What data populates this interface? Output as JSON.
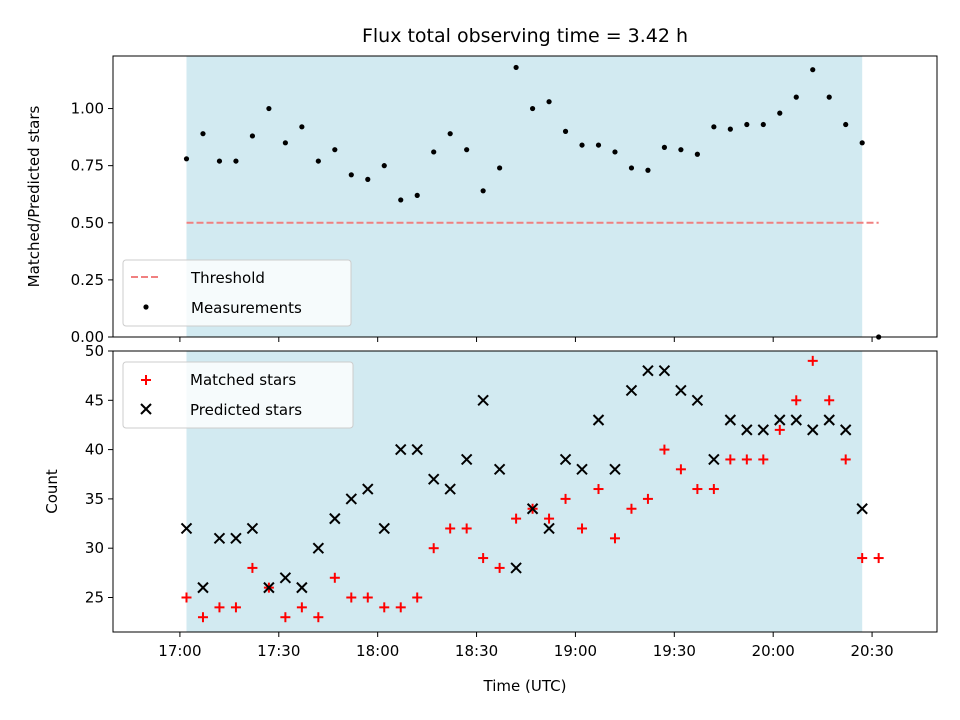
{
  "chart_data": [
    {
      "type": "scatter",
      "title": "Flux total observing time = 3.42 h",
      "xlabel": "",
      "ylabel": "Matched/Predicted stars",
      "ylim": [
        0,
        1.23
      ],
      "yticks": [
        "0.00",
        "0.25",
        "0.50",
        "0.75",
        "1.00"
      ],
      "legend_position": "lower-left",
      "shaded_span": [
        "17:02",
        "20:27"
      ],
      "shaded_color": "#add8e6",
      "threshold": {
        "name": "Threshold",
        "value": 0.5,
        "x_range": [
          "17:02",
          "20:32"
        ],
        "color": "#f08080",
        "style": "dashed"
      },
      "series": [
        {
          "name": "Measurements",
          "marker": "dot",
          "color": "#000000",
          "x": [
            "17:02",
            "17:07",
            "17:12",
            "17:17",
            "17:22",
            "17:27",
            "17:32",
            "17:37",
            "17:42",
            "17:47",
            "17:52",
            "17:57",
            "18:02",
            "18:07",
            "18:12",
            "18:17",
            "18:22",
            "18:27",
            "18:32",
            "18:37",
            "18:42",
            "18:47",
            "18:52",
            "18:57",
            "19:02",
            "19:07",
            "19:12",
            "19:17",
            "19:22",
            "19:27",
            "19:32",
            "19:37",
            "19:42",
            "19:47",
            "19:52",
            "19:57",
            "20:02",
            "20:07",
            "20:12",
            "20:17",
            "20:22",
            "20:27",
            "20:32"
          ],
          "y": [
            0.78,
            0.89,
            0.77,
            0.77,
            0.88,
            1.0,
            0.85,
            0.92,
            0.77,
            0.82,
            0.71,
            0.69,
            0.75,
            0.6,
            0.62,
            0.81,
            0.89,
            0.82,
            0.64,
            0.74,
            1.18,
            1.0,
            1.03,
            0.9,
            0.84,
            0.84,
            0.81,
            0.74,
            0.73,
            0.83,
            0.82,
            0.8,
            0.92,
            0.91,
            0.93,
            0.93,
            0.98,
            1.05,
            1.17,
            1.05,
            0.93,
            0.85,
            0.0
          ]
        }
      ]
    },
    {
      "type": "scatter",
      "title": "",
      "xlabel": "Time (UTC)",
      "ylabel": "Count",
      "ylim": [
        21.5,
        50
      ],
      "yticks": [
        "25",
        "30",
        "35",
        "40",
        "45",
        "50"
      ],
      "xticks": [
        "17:00",
        "17:30",
        "18:00",
        "18:30",
        "19:00",
        "19:30",
        "20:00",
        "20:30"
      ],
      "legend_position": "top-left",
      "shaded_span": [
        "17:02",
        "20:27"
      ],
      "shaded_color": "#add8e6",
      "series": [
        {
          "name": "Matched stars",
          "marker": "plus",
          "color": "#ff0000",
          "x": [
            "17:02",
            "17:07",
            "17:12",
            "17:17",
            "17:22",
            "17:27",
            "17:32",
            "17:37",
            "17:42",
            "17:47",
            "17:52",
            "17:57",
            "18:02",
            "18:07",
            "18:12",
            "18:17",
            "18:22",
            "18:27",
            "18:32",
            "18:37",
            "18:42",
            "18:47",
            "18:52",
            "18:57",
            "19:02",
            "19:07",
            "19:12",
            "19:17",
            "19:22",
            "19:27",
            "19:32",
            "19:37",
            "19:42",
            "19:47",
            "19:52",
            "19:57",
            "20:02",
            "20:07",
            "20:12",
            "20:17",
            "20:22",
            "20:27",
            "20:32"
          ],
          "y": [
            25,
            23,
            24,
            24,
            28,
            26,
            23,
            24,
            23,
            27,
            25,
            25,
            24,
            24,
            25,
            30,
            32,
            32,
            29,
            28,
            33,
            34,
            33,
            35,
            32,
            36,
            31,
            34,
            35,
            40,
            38,
            36,
            36,
            39,
            39,
            39,
            42,
            45,
            49,
            45,
            39,
            29,
            29
          ]
        },
        {
          "name": "Predicted stars",
          "marker": "x",
          "color": "#000000",
          "x": [
            "17:02",
            "17:07",
            "17:12",
            "17:17",
            "17:22",
            "17:27",
            "17:32",
            "17:37",
            "17:42",
            "17:47",
            "17:52",
            "17:57",
            "18:02",
            "18:07",
            "18:12",
            "18:17",
            "18:22",
            "18:27",
            "18:32",
            "18:37",
            "18:42",
            "18:47",
            "18:52",
            "18:57",
            "19:02",
            "19:07",
            "19:12",
            "19:17",
            "19:22",
            "19:27",
            "19:32",
            "19:37",
            "19:42",
            "19:47",
            "19:52",
            "19:57",
            "20:02",
            "20:07",
            "20:12",
            "20:17",
            "20:22",
            "20:27"
          ],
          "y": [
            32,
            26,
            31,
            31,
            32,
            26,
            27,
            26,
            30,
            33,
            35,
            36,
            32,
            40,
            40,
            37,
            36,
            39,
            45,
            38,
            28,
            34,
            32,
            39,
            38,
            43,
            38,
            46,
            48,
            48,
            46,
            45,
            39,
            43,
            42,
            42,
            43,
            43,
            42,
            43,
            42,
            34
          ]
        }
      ]
    }
  ]
}
